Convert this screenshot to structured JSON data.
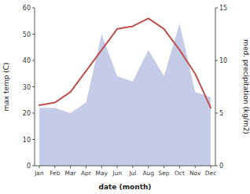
{
  "chart_data": {
    "type": "line",
    "xlabel": "date (month)",
    "ylabel": "max temp (C)",
    "y2label": "med. precipitation (kg/m2)",
    "categories": [
      "Jan",
      "Feb",
      "Mar",
      "Apr",
      "May",
      "Jun",
      "Jul",
      "Aug",
      "Sep",
      "Oct",
      "Nov",
      "Dec"
    ],
    "series": [
      {
        "type": "area",
        "axis": "y2",
        "color": "#c5cce8",
        "values": [
          5.5,
          5.5,
          5.0,
          6.0,
          12.5,
          8.5,
          8.0,
          11.0,
          8.5,
          13.5,
          7.0,
          6.5
        ]
      },
      {
        "type": "line",
        "color": "#c0504d",
        "values": [
          23,
          24,
          28,
          36,
          44,
          52,
          53,
          56,
          52,
          44,
          35,
          22
        ]
      }
    ],
    "ylim": [
      0,
      60
    ],
    "yticks": [
      0,
      10,
      20,
      30,
      40,
      50,
      60
    ],
    "y2lim": [
      0,
      15
    ],
    "y2ticks": [
      0,
      5,
      10,
      15
    ]
  }
}
